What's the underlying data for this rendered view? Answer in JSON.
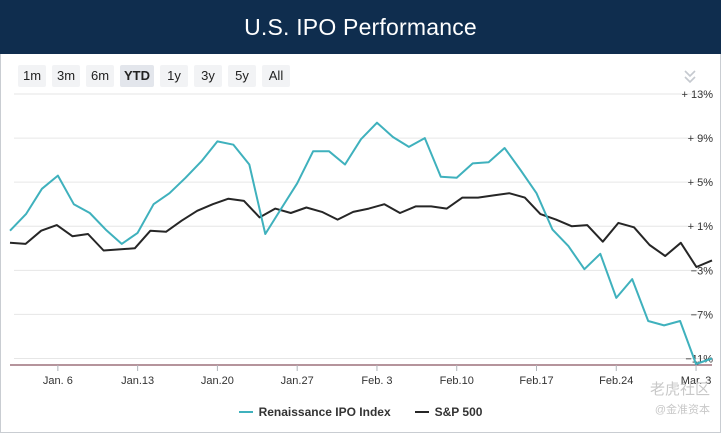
{
  "header": {
    "title": "U.S. IPO Performance"
  },
  "toolbar": {
    "ranges": [
      {
        "label": "1m",
        "active": false
      },
      {
        "label": "3m",
        "active": false
      },
      {
        "label": "6m",
        "active": false
      },
      {
        "label": "YTD",
        "active": true
      },
      {
        "label": "1y",
        "active": false
      },
      {
        "label": "3y",
        "active": false
      },
      {
        "label": "5y",
        "active": false
      },
      {
        "label": "All",
        "active": false
      }
    ],
    "menu_icon": "double-chevron-down-icon"
  },
  "watermark": {
    "main": "老虎社区",
    "sub": "@金准资本"
  },
  "chart_data": {
    "type": "line",
    "title": "U.S. IPO Performance",
    "xlabel": "",
    "ylabel": "",
    "x_tick_labels": [
      "Jan. 6",
      "Jan.13",
      "Jan.20",
      "Jan.27",
      "Feb. 3",
      "Feb.10",
      "Feb.17",
      "Feb.24",
      "Mar. 3"
    ],
    "y_tick_labels": [
      "+ 13%",
      "+ 9%",
      "+ 5%",
      "+ 1%",
      "−3%",
      "−7%",
      "−11%"
    ],
    "y_ticks": [
      13,
      9,
      5,
      1,
      -3,
      -7,
      -11
    ],
    "ylim": [
      -11.5,
      13
    ],
    "grid": true,
    "legend_position": "bottom-center",
    "series": [
      {
        "name": "Renaissance IPO Index",
        "color": "#3fb1bd",
        "values": [
          0.6,
          2.1,
          4.4,
          5.6,
          3.0,
          2.2,
          0.7,
          -0.6,
          0.4,
          3.0,
          4.0,
          5.4,
          6.9,
          8.7,
          8.4,
          6.6,
          0.3,
          2.6,
          4.9,
          7.8,
          7.8,
          6.6,
          8.9,
          10.4,
          9.1,
          8.2,
          9.0,
          5.5,
          5.4,
          6.7,
          6.8,
          8.1,
          6.1,
          4.0,
          0.7,
          -0.8,
          -2.9,
          -1.5,
          -5.5,
          -3.8,
          -7.6,
          -8.0,
          -7.6,
          -11.5,
          -11.0
        ]
      },
      {
        "name": "S&P 500",
        "color": "#262626",
        "values": [
          -0.5,
          -0.6,
          0.6,
          1.1,
          0.1,
          0.3,
          -1.2,
          -1.1,
          -1.0,
          0.6,
          0.5,
          1.5,
          2.4,
          3.0,
          3.5,
          3.3,
          1.8,
          2.6,
          2.2,
          2.7,
          2.3,
          1.6,
          2.3,
          2.6,
          3.0,
          2.2,
          2.8,
          2.8,
          2.6,
          3.6,
          3.6,
          3.8,
          4.0,
          3.6,
          2.1,
          1.6,
          1.0,
          1.1,
          -0.4,
          1.3,
          0.9,
          -0.7,
          -1.7,
          -0.5,
          -2.7,
          -2.1
        ]
      }
    ]
  }
}
